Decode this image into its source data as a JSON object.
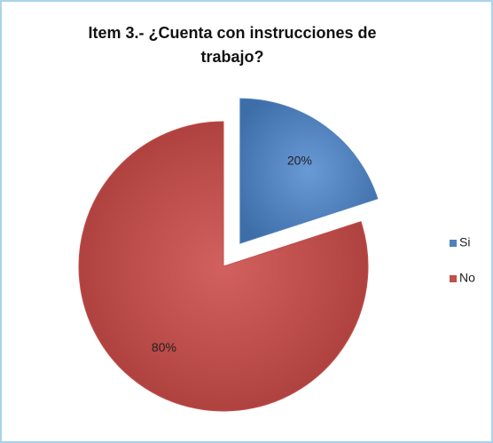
{
  "chart_data": {
    "type": "pie",
    "title": "Item 3.- ¿Cuenta con instrucciones de trabajo?",
    "categories": [
      "Si",
      "No"
    ],
    "values": [
      20,
      80
    ],
    "value_labels": [
      "20%",
      "80%"
    ],
    "colors": [
      "#4f81bd",
      "#c0504d"
    ],
    "exploded": [
      true,
      false
    ],
    "legend": "right"
  }
}
